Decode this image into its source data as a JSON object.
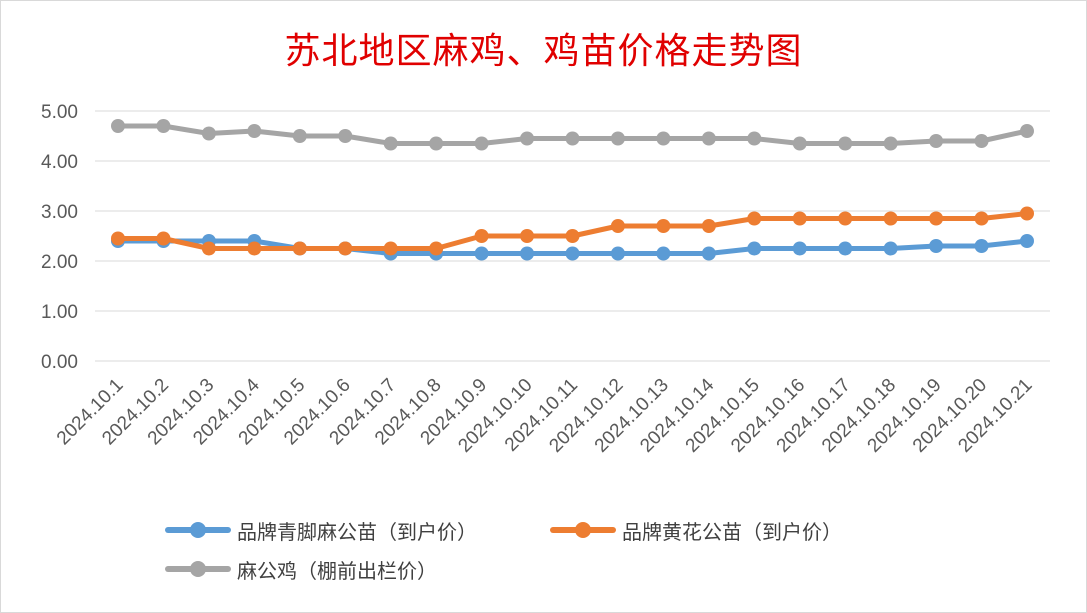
{
  "chart_data": {
    "type": "line",
    "title": "苏北地区麻鸡、鸡苗价格走势图",
    "categories": [
      "2024.10.1",
      "2024.10.2",
      "2024.10.3",
      "2024.10.4",
      "2024.10.5",
      "2024.10.6",
      "2024.10.7",
      "2024.10.8",
      "2024.10.9",
      "2024.10.10",
      "2024.10.11",
      "2024.10.12",
      "2024.10.13",
      "2024.10.14",
      "2024.10.15",
      "2024.10.16",
      "2024.10.17",
      "2024.10.18",
      "2024.10.19",
      "2024.10.20",
      "2024.10.21"
    ],
    "series": [
      {
        "name": "品牌青脚麻公苗（到户价）",
        "color": "#5b9bd5",
        "values": [
          2.4,
          2.4,
          2.4,
          2.4,
          2.25,
          2.25,
          2.15,
          2.15,
          2.15,
          2.15,
          2.15,
          2.15,
          2.15,
          2.15,
          2.25,
          2.25,
          2.25,
          2.25,
          2.3,
          2.3,
          2.4
        ]
      },
      {
        "name": "品牌黄花公苗（到户价）",
        "color": "#ed7d31",
        "values": [
          2.45,
          2.45,
          2.25,
          2.25,
          2.25,
          2.25,
          2.25,
          2.25,
          2.5,
          2.5,
          2.5,
          2.7,
          2.7,
          2.7,
          2.85,
          2.85,
          2.85,
          2.85,
          2.85,
          2.85,
          2.95
        ]
      },
      {
        "name": "麻公鸡（棚前出栏价）",
        "color": "#a5a5a5",
        "values": [
          4.7,
          4.7,
          4.55,
          4.6,
          4.5,
          4.5,
          4.35,
          4.35,
          4.35,
          4.45,
          4.45,
          4.45,
          4.45,
          4.45,
          4.45,
          4.35,
          4.35,
          4.35,
          4.4,
          4.4,
          4.6
        ]
      }
    ],
    "yticks": [
      "0.00",
      "1.00",
      "2.00",
      "3.00",
      "4.00",
      "5.00"
    ],
    "ylim": [
      0,
      5
    ],
    "grid": true,
    "legend_position": "bottom"
  }
}
